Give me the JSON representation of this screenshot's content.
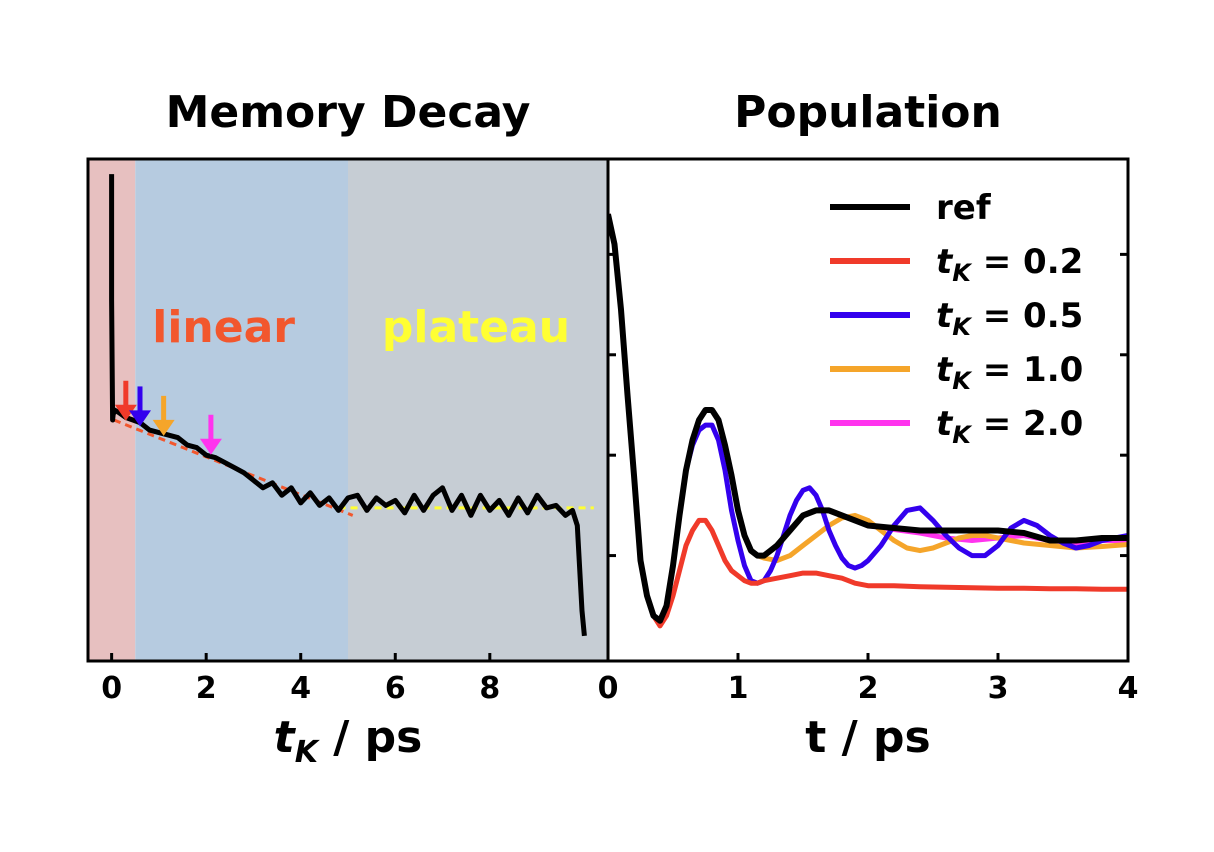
{
  "chart_data": [
    {
      "type": "line",
      "title": "Memory Decay",
      "xlabel_var": "t",
      "xlabel_sub": "K",
      "xlabel_unit": " / ps",
      "xlim": [
        -0.5,
        10.5
      ],
      "ylim": [
        0.0,
        1.0
      ],
      "xticks": [
        "0",
        "2",
        "4",
        "6",
        "8"
      ],
      "grid": false,
      "regions": [
        {
          "x0": -0.5,
          "x1": 0.5,
          "color": "#e7c0c0"
        },
        {
          "x0": 0.5,
          "x1": 5.0,
          "color": "#b6cbe0",
          "label": "linear",
          "label_color": "#f2572d"
        },
        {
          "x0": 5.0,
          "x1": 10.5,
          "color": "#c6cdd4",
          "label": "plateau",
          "label_color": "#ffff33"
        }
      ],
      "fits": [
        {
          "type": "linear",
          "x0": 0.05,
          "y0": 0.48,
          "x1": 5.1,
          "y1": 0.29,
          "color": "#f2572d",
          "dash": true
        },
        {
          "type": "plateau",
          "x0": 4.8,
          "x1": 10.2,
          "y": 0.305,
          "color": "#ffff33",
          "dash": true
        }
      ],
      "arrows": [
        {
          "x": 0.3,
          "color": "#f03a2a"
        },
        {
          "x": 0.6,
          "color": "#3300ee"
        },
        {
          "x": 1.1,
          "color": "#f5a52a"
        },
        {
          "x": 2.1,
          "color": "#ff33ee"
        }
      ],
      "series": [
        {
          "color": "#000000",
          "x": [
            0.0,
            0.0,
            0.02,
            0.03,
            0.06,
            0.15,
            0.3,
            0.45,
            0.6,
            0.8,
            1.0,
            1.2,
            1.4,
            1.6,
            1.8,
            2.0,
            2.2,
            2.4,
            2.6,
            2.8,
            3.0,
            3.2,
            3.4,
            3.6,
            3.8,
            4.0,
            4.2,
            4.4,
            4.6,
            4.8,
            5.0,
            5.2,
            5.4,
            5.6,
            5.8,
            6.0,
            6.2,
            6.4,
            6.6,
            6.8,
            7.0,
            7.2,
            7.4,
            7.6,
            7.8,
            8.0,
            8.2,
            8.4,
            8.6,
            8.8,
            9.0,
            9.2,
            9.4,
            9.6,
            9.75,
            9.85,
            9.95,
            10.0
          ],
          "y": [
            0.97,
            0.72,
            0.48,
            0.49,
            0.5,
            0.495,
            0.485,
            0.48,
            0.475,
            0.46,
            0.455,
            0.45,
            0.445,
            0.43,
            0.425,
            0.41,
            0.405,
            0.395,
            0.385,
            0.375,
            0.36,
            0.345,
            0.355,
            0.33,
            0.345,
            0.315,
            0.335,
            0.31,
            0.325,
            0.3,
            0.325,
            0.33,
            0.3,
            0.325,
            0.31,
            0.32,
            0.295,
            0.33,
            0.3,
            0.33,
            0.345,
            0.3,
            0.33,
            0.29,
            0.33,
            0.3,
            0.32,
            0.29,
            0.325,
            0.295,
            0.33,
            0.305,
            0.31,
            0.29,
            0.3,
            0.27,
            0.1,
            0.05
          ]
        }
      ]
    },
    {
      "type": "line",
      "title": "Population",
      "xlabel": "t / ps",
      "xlim": [
        0,
        4
      ],
      "ylim": [
        0.0,
        1.0
      ],
      "xticks": [
        "0",
        "1",
        "2",
        "3",
        "4"
      ],
      "grid": false,
      "legend_position": "upper-right",
      "series": [
        {
          "name": "ref",
          "color": "#000000",
          "x": [
            0.0,
            0.05,
            0.1,
            0.15,
            0.2,
            0.25,
            0.3,
            0.35,
            0.4,
            0.45,
            0.5,
            0.55,
            0.6,
            0.65,
            0.7,
            0.75,
            0.8,
            0.85,
            0.9,
            0.95,
            1.0,
            1.05,
            1.1,
            1.15,
            1.2,
            1.25,
            1.3,
            1.4,
            1.5,
            1.6,
            1.7,
            1.8,
            1.9,
            2.0,
            2.2,
            2.4,
            2.6,
            2.8,
            3.0,
            3.2,
            3.4,
            3.6,
            3.8,
            4.0
          ],
          "y": [
            0.89,
            0.83,
            0.7,
            0.53,
            0.37,
            0.2,
            0.13,
            0.09,
            0.08,
            0.11,
            0.19,
            0.29,
            0.38,
            0.44,
            0.48,
            0.5,
            0.5,
            0.48,
            0.43,
            0.37,
            0.3,
            0.25,
            0.22,
            0.21,
            0.21,
            0.22,
            0.23,
            0.26,
            0.29,
            0.3,
            0.3,
            0.29,
            0.28,
            0.27,
            0.265,
            0.26,
            0.26,
            0.26,
            0.26,
            0.255,
            0.24,
            0.24,
            0.245,
            0.245
          ]
        },
        {
          "name": "t",
          "sub": "K",
          "suffix": " = 0.2",
          "color": "#f03a2a",
          "x": [
            0.0,
            0.05,
            0.1,
            0.15,
            0.2,
            0.25,
            0.3,
            0.35,
            0.4,
            0.45,
            0.5,
            0.55,
            0.6,
            0.65,
            0.7,
            0.75,
            0.8,
            0.85,
            0.9,
            0.95,
            1.0,
            1.05,
            1.1,
            1.15,
            1.2,
            1.3,
            1.4,
            1.5,
            1.6,
            1.7,
            1.8,
            1.9,
            2.0,
            2.2,
            2.4,
            2.6,
            2.8,
            3.0,
            3.2,
            3.4,
            3.6,
            3.8,
            4.0
          ],
          "y": [
            0.89,
            0.83,
            0.7,
            0.53,
            0.37,
            0.2,
            0.13,
            0.09,
            0.07,
            0.09,
            0.13,
            0.18,
            0.23,
            0.26,
            0.28,
            0.28,
            0.26,
            0.23,
            0.2,
            0.18,
            0.17,
            0.16,
            0.155,
            0.155,
            0.16,
            0.165,
            0.17,
            0.175,
            0.175,
            0.17,
            0.165,
            0.155,
            0.15,
            0.15,
            0.148,
            0.147,
            0.146,
            0.145,
            0.145,
            0.144,
            0.144,
            0.143,
            0.143
          ]
        },
        {
          "name": "t",
          "sub": "K",
          "suffix": " = 0.5",
          "color": "#3300ee",
          "x": [
            0.0,
            0.05,
            0.1,
            0.15,
            0.2,
            0.25,
            0.3,
            0.35,
            0.4,
            0.45,
            0.5,
            0.55,
            0.6,
            0.65,
            0.7,
            0.75,
            0.8,
            0.85,
            0.9,
            0.95,
            1.0,
            1.05,
            1.1,
            1.15,
            1.2,
            1.25,
            1.3,
            1.35,
            1.4,
            1.45,
            1.5,
            1.55,
            1.6,
            1.65,
            1.7,
            1.75,
            1.8,
            1.85,
            1.9,
            1.95,
            2.0,
            2.1,
            2.2,
            2.3,
            2.4,
            2.5,
            2.6,
            2.7,
            2.8,
            2.9,
            3.0,
            3.1,
            3.2,
            3.3,
            3.4,
            3.5,
            3.6,
            3.7,
            3.8,
            3.9,
            4.0
          ],
          "y": [
            0.89,
            0.83,
            0.7,
            0.53,
            0.37,
            0.2,
            0.13,
            0.09,
            0.08,
            0.11,
            0.19,
            0.29,
            0.38,
            0.43,
            0.46,
            0.47,
            0.47,
            0.44,
            0.38,
            0.3,
            0.24,
            0.19,
            0.16,
            0.155,
            0.16,
            0.18,
            0.21,
            0.25,
            0.29,
            0.32,
            0.34,
            0.345,
            0.33,
            0.3,
            0.26,
            0.23,
            0.205,
            0.19,
            0.185,
            0.19,
            0.2,
            0.23,
            0.27,
            0.3,
            0.305,
            0.28,
            0.25,
            0.225,
            0.21,
            0.21,
            0.23,
            0.265,
            0.28,
            0.27,
            0.25,
            0.235,
            0.225,
            0.23,
            0.24,
            0.245,
            0.25
          ]
        },
        {
          "name": "t",
          "sub": "K",
          "suffix": " = 1.0",
          "color": "#f5a52a",
          "x": [
            0.0,
            0.05,
            0.1,
            0.15,
            0.2,
            0.25,
            0.3,
            0.35,
            0.4,
            0.45,
            0.5,
            0.55,
            0.6,
            0.65,
            0.7,
            0.75,
            0.8,
            0.85,
            0.9,
            0.95,
            1.0,
            1.05,
            1.1,
            1.15,
            1.2,
            1.3,
            1.4,
            1.5,
            1.6,
            1.7,
            1.8,
            1.9,
            2.0,
            2.1,
            2.2,
            2.3,
            2.4,
            2.5,
            2.6,
            2.7,
            2.8,
            2.9,
            3.0,
            3.2,
            3.4,
            3.6,
            3.8,
            4.0
          ],
          "y": [
            0.89,
            0.83,
            0.7,
            0.53,
            0.37,
            0.2,
            0.13,
            0.09,
            0.08,
            0.11,
            0.19,
            0.29,
            0.38,
            0.44,
            0.48,
            0.5,
            0.5,
            0.48,
            0.43,
            0.37,
            0.3,
            0.25,
            0.22,
            0.21,
            0.205,
            0.2,
            0.21,
            0.23,
            0.25,
            0.27,
            0.285,
            0.29,
            0.28,
            0.26,
            0.24,
            0.225,
            0.22,
            0.225,
            0.235,
            0.245,
            0.25,
            0.25,
            0.245,
            0.235,
            0.23,
            0.225,
            0.228,
            0.232
          ]
        },
        {
          "name": "t",
          "sub": "K",
          "suffix": " = 2.0",
          "color": "#ff33ee",
          "x": [
            0.0,
            0.05,
            0.1,
            0.15,
            0.2,
            0.25,
            0.3,
            0.35,
            0.4,
            0.45,
            0.5,
            0.55,
            0.6,
            0.65,
            0.7,
            0.75,
            0.8,
            0.85,
            0.9,
            0.95,
            1.0,
            1.05,
            1.1,
            1.15,
            1.2,
            1.25,
            1.3,
            1.4,
            1.5,
            1.6,
            1.7,
            1.8,
            1.9,
            2.0,
            2.2,
            2.4,
            2.6,
            2.8,
            3.0,
            3.2,
            3.4,
            3.6,
            3.8,
            4.0
          ],
          "y": [
            0.89,
            0.83,
            0.7,
            0.53,
            0.37,
            0.2,
            0.13,
            0.09,
            0.08,
            0.11,
            0.19,
            0.29,
            0.38,
            0.44,
            0.48,
            0.5,
            0.5,
            0.48,
            0.43,
            0.37,
            0.3,
            0.25,
            0.22,
            0.21,
            0.21,
            0.22,
            0.23,
            0.26,
            0.29,
            0.3,
            0.3,
            0.29,
            0.28,
            0.27,
            0.262,
            0.255,
            0.245,
            0.24,
            0.245,
            0.25,
            0.24,
            0.235,
            0.24,
            0.24
          ]
        }
      ]
    }
  ]
}
